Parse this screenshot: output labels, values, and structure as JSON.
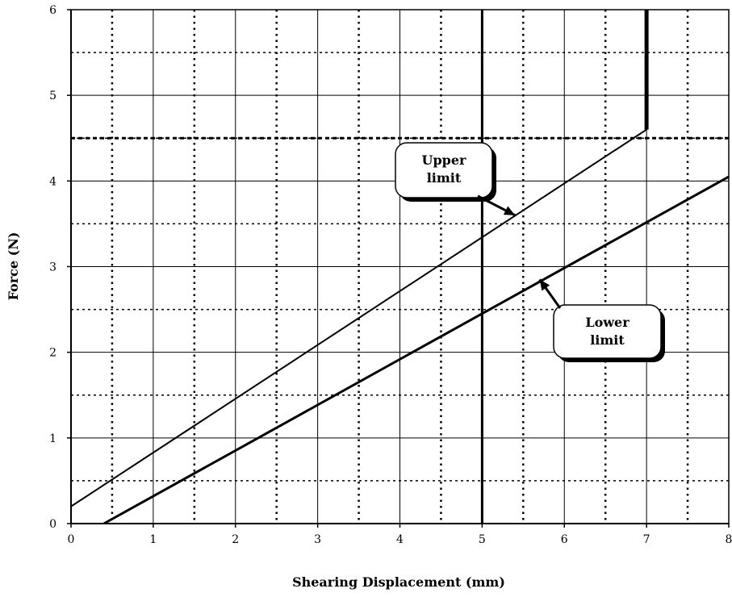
{
  "chart_data": {
    "type": "line",
    "xlabel": "Shearing Displacement (mm)",
    "ylabel": "Force (N)",
    "xlim": [
      0,
      8
    ],
    "ylim": [
      0,
      6
    ],
    "x_ticks": [
      "0",
      "1",
      "2",
      "3",
      "4",
      "5",
      "6",
      "7",
      "8"
    ],
    "y_ticks": [
      "0",
      "1",
      "2",
      "3",
      "4",
      "5",
      "6"
    ],
    "grid": {
      "major": "solid",
      "minor": "dotted",
      "minor_step_x": 0.5,
      "minor_step_y": 0.5
    },
    "reference_lines": [
      {
        "axis": "x",
        "value": 5,
        "style": "solid-bold"
      },
      {
        "axis": "y",
        "value": 4.5,
        "style": "dashed-bold"
      }
    ],
    "series": [
      {
        "name": "Upper limit",
        "points": [
          [
            0,
            0.2
          ],
          [
            7,
            4.6
          ],
          [
            7,
            6
          ]
        ],
        "color": "#000000"
      },
      {
        "name": "Lower limit",
        "points": [
          [
            0.4,
            0
          ],
          [
            8,
            4.05
          ]
        ],
        "color": "#000000"
      }
    ],
    "annotations": [
      {
        "lines": [
          "Upper",
          "limit"
        ],
        "target": [
          5.4,
          3.6
        ],
        "position": "upper-middle"
      },
      {
        "lines": [
          "Lower",
          "limit"
        ],
        "target": [
          5.7,
          2.85
        ],
        "position": "right-middle"
      }
    ]
  }
}
